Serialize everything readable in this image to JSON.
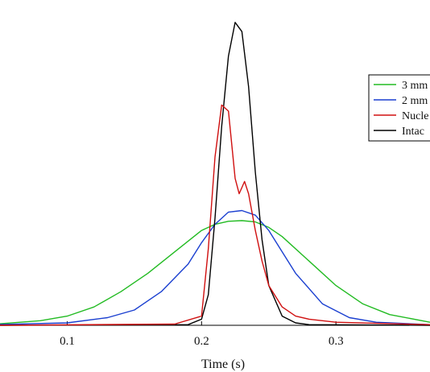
{
  "chart_data": {
    "type": "line",
    "xlabel": "Time (s)",
    "ylabel": "",
    "xlim": [
      0.05,
      0.37
    ],
    "ylim": [
      0,
      1
    ],
    "x_ticks": [
      {
        "value": 0.1,
        "label": "0.1"
      },
      {
        "value": 0.2,
        "label": "0.2"
      },
      {
        "value": 0.3,
        "label": "0.3"
      }
    ],
    "grid": false,
    "legend_position": "top-right",
    "series": [
      {
        "name": "3 mm",
        "color": "#22bb22",
        "x": [
          0.05,
          0.08,
          0.1,
          0.12,
          0.14,
          0.16,
          0.18,
          0.2,
          0.21,
          0.22,
          0.23,
          0.24,
          0.25,
          0.26,
          0.28,
          0.3,
          0.32,
          0.34,
          0.37
        ],
        "y": [
          0.005,
          0.015,
          0.03,
          0.06,
          0.11,
          0.17,
          0.24,
          0.31,
          0.33,
          0.34,
          0.342,
          0.338,
          0.32,
          0.29,
          0.21,
          0.13,
          0.07,
          0.035,
          0.01
        ]
      },
      {
        "name": "2 mm",
        "color": "#1a3fd0",
        "x": [
          0.05,
          0.1,
          0.13,
          0.15,
          0.17,
          0.19,
          0.2,
          0.21,
          0.22,
          0.23,
          0.24,
          0.25,
          0.26,
          0.27,
          0.29,
          0.31,
          0.33,
          0.37
        ],
        "y": [
          0.003,
          0.008,
          0.025,
          0.05,
          0.11,
          0.2,
          0.27,
          0.33,
          0.37,
          0.375,
          0.36,
          0.31,
          0.24,
          0.17,
          0.07,
          0.025,
          0.01,
          0.002
        ]
      },
      {
        "name": "Nucle",
        "color": "#d01010",
        "x": [
          0.05,
          0.18,
          0.2,
          0.205,
          0.21,
          0.215,
          0.22,
          0.225,
          0.228,
          0.232,
          0.235,
          0.24,
          0.245,
          0.25,
          0.26,
          0.27,
          0.28,
          0.29,
          0.3,
          0.37
        ],
        "y": [
          0.0,
          0.004,
          0.03,
          0.25,
          0.55,
          0.72,
          0.7,
          0.48,
          0.43,
          0.47,
          0.43,
          0.31,
          0.21,
          0.13,
          0.06,
          0.03,
          0.02,
          0.015,
          0.01,
          0.002
        ]
      },
      {
        "name": "Intac",
        "color": "#000000",
        "x": [
          0.05,
          0.19,
          0.2,
          0.205,
          0.21,
          0.215,
          0.22,
          0.225,
          0.23,
          0.235,
          0.24,
          0.245,
          0.25,
          0.26,
          0.27,
          0.28,
          0.37
        ],
        "y": [
          0.0,
          0.002,
          0.02,
          0.1,
          0.35,
          0.65,
          0.88,
          0.99,
          0.96,
          0.78,
          0.5,
          0.28,
          0.13,
          0.03,
          0.008,
          0.002,
          0.0
        ]
      }
    ]
  }
}
